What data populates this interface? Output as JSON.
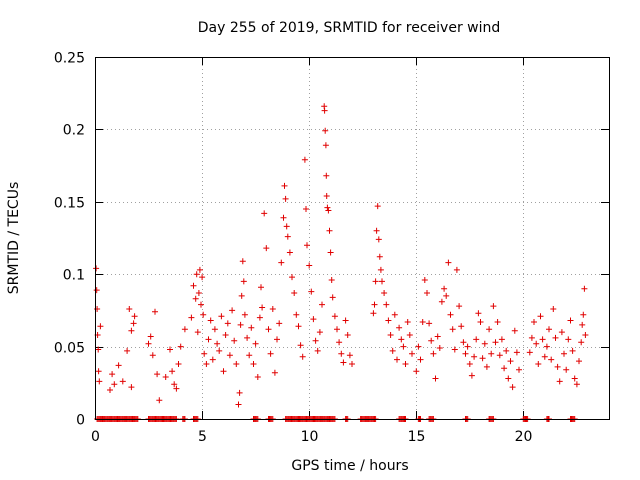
{
  "chart_data": {
    "type": "scatter",
    "title": "Day 255 of 2019, SRMTID for receiver wind",
    "xlabel": "GPS time / hours",
    "ylabel": "SRMTID / TECUs",
    "xlim": [
      0,
      24
    ],
    "ylim": [
      0,
      0.25
    ],
    "xticks": [
      0,
      5,
      10,
      15,
      20
    ],
    "yticks": [
      0,
      0.05,
      0.1,
      0.15,
      0.2,
      0.25
    ],
    "xtick_labels": [
      "0",
      "5",
      "10",
      "15",
      "20"
    ],
    "ytick_labels": [
      "0",
      "0.05",
      "0.1",
      "0.15",
      "0.2",
      "0.25"
    ],
    "grid": true,
    "marker": "+",
    "color": "#e00000",
    "series": [
      {
        "name": "SRMTID",
        "points": [
          [
            0.05,
            0.104
          ],
          [
            0.08,
            0.089
          ],
          [
            0.1,
            0.076
          ],
          [
            0.12,
            0.058
          ],
          [
            0.15,
            0.048
          ],
          [
            0.17,
            0.033
          ],
          [
            0.2,
            0.026
          ],
          [
            0.25,
            0.064
          ],
          [
            0.7,
            0.02
          ],
          [
            0.8,
            0.031
          ],
          [
            0.9,
            0.024
          ],
          [
            1.1,
            0.037
          ],
          [
            1.3,
            0.026
          ],
          [
            1.5,
            0.047
          ],
          [
            1.6,
            0.076
          ],
          [
            1.7,
            0.061
          ],
          [
            1.8,
            0.066
          ],
          [
            1.85,
            0.071
          ],
          [
            1.7,
            0.022
          ],
          [
            2.5,
            0.052
          ],
          [
            2.6,
            0.057
          ],
          [
            2.7,
            0.044
          ],
          [
            2.8,
            0.074
          ],
          [
            2.9,
            0.031
          ],
          [
            3.0,
            0.013
          ],
          [
            3.3,
            0.029
          ],
          [
            3.5,
            0.048
          ],
          [
            3.6,
            0.033
          ],
          [
            3.7,
            0.024
          ],
          [
            3.8,
            0.021
          ],
          [
            3.9,
            0.038
          ],
          [
            4.0,
            0.05
          ],
          [
            4.2,
            0.062
          ],
          [
            4.5,
            0.07
          ],
          [
            4.6,
            0.092
          ],
          [
            4.7,
            0.083
          ],
          [
            4.75,
            0.1
          ],
          [
            4.8,
            0.06
          ],
          [
            4.85,
            0.087
          ],
          [
            4.9,
            0.103
          ],
          [
            4.95,
            0.079
          ],
          [
            5.0,
            0.098
          ],
          [
            5.05,
            0.072
          ],
          [
            5.1,
            0.045
          ],
          [
            5.2,
            0.038
          ],
          [
            5.3,
            0.055
          ],
          [
            5.4,
            0.068
          ],
          [
            5.5,
            0.041
          ],
          [
            5.6,
            0.062
          ],
          [
            5.7,
            0.052
          ],
          [
            5.8,
            0.047
          ],
          [
            5.9,
            0.071
          ],
          [
            6.0,
            0.033
          ],
          [
            6.1,
            0.058
          ],
          [
            6.2,
            0.066
          ],
          [
            6.3,
            0.044
          ],
          [
            6.4,
            0.075
          ],
          [
            6.5,
            0.054
          ],
          [
            6.6,
            0.038
          ],
          [
            6.7,
            0.01
          ],
          [
            6.75,
            0.018
          ],
          [
            6.8,
            0.065
          ],
          [
            6.85,
            0.085
          ],
          [
            6.9,
            0.109
          ],
          [
            6.95,
            0.095
          ],
          [
            7.0,
            0.072
          ],
          [
            7.1,
            0.056
          ],
          [
            7.2,
            0.044
          ],
          [
            7.3,
            0.063
          ],
          [
            7.4,
            0.038
          ],
          [
            7.5,
            0.052
          ],
          [
            7.6,
            0.029
          ],
          [
            7.7,
            0.07
          ],
          [
            7.75,
            0.091
          ],
          [
            7.8,
            0.077
          ],
          [
            7.9,
            0.142
          ],
          [
            8.0,
            0.118
          ],
          [
            8.1,
            0.062
          ],
          [
            8.2,
            0.045
          ],
          [
            8.3,
            0.076
          ],
          [
            8.4,
            0.032
          ],
          [
            8.5,
            0.055
          ],
          [
            8.6,
            0.066
          ],
          [
            8.7,
            0.108
          ],
          [
            8.8,
            0.139
          ],
          [
            8.85,
            0.161
          ],
          [
            8.9,
            0.152
          ],
          [
            8.95,
            0.133
          ],
          [
            9.0,
            0.126
          ],
          [
            9.1,
            0.115
          ],
          [
            9.2,
            0.098
          ],
          [
            9.3,
            0.087
          ],
          [
            9.4,
            0.072
          ],
          [
            9.5,
            0.064
          ],
          [
            9.6,
            0.051
          ],
          [
            9.7,
            0.043
          ],
          [
            9.8,
            0.179
          ],
          [
            9.85,
            0.145
          ],
          [
            9.9,
            0.12
          ],
          [
            10.0,
            0.106
          ],
          [
            10.1,
            0.088
          ],
          [
            10.2,
            0.069
          ],
          [
            10.3,
            0.054
          ],
          [
            10.4,
            0.047
          ],
          [
            10.5,
            0.06
          ],
          [
            10.6,
            0.079
          ],
          [
            10.7,
            0.216
          ],
          [
            10.72,
            0.213
          ],
          [
            10.75,
            0.199
          ],
          [
            10.78,
            0.189
          ],
          [
            10.8,
            0.168
          ],
          [
            10.82,
            0.154
          ],
          [
            10.85,
            0.146
          ],
          [
            10.9,
            0.144
          ],
          [
            10.95,
            0.13
          ],
          [
            11.0,
            0.115
          ],
          [
            11.05,
            0.096
          ],
          [
            11.1,
            0.084
          ],
          [
            11.2,
            0.071
          ],
          [
            11.3,
            0.062
          ],
          [
            11.4,
            0.053
          ],
          [
            11.5,
            0.045
          ],
          [
            11.6,
            0.039
          ],
          [
            11.7,
            0.068
          ],
          [
            11.8,
            0.058
          ],
          [
            11.9,
            0.044
          ],
          [
            12.0,
            0.038
          ],
          [
            13.0,
            0.073
          ],
          [
            13.05,
            0.079
          ],
          [
            13.1,
            0.095
          ],
          [
            13.15,
            0.13
          ],
          [
            13.2,
            0.147
          ],
          [
            13.25,
            0.124
          ],
          [
            13.3,
            0.112
          ],
          [
            13.35,
            0.103
          ],
          [
            13.4,
            0.095
          ],
          [
            13.5,
            0.087
          ],
          [
            13.6,
            0.079
          ],
          [
            13.7,
            0.068
          ],
          [
            13.8,
            0.058
          ],
          [
            13.9,
            0.047
          ],
          [
            14.0,
            0.072
          ],
          [
            14.1,
            0.041
          ],
          [
            14.2,
            0.063
          ],
          [
            14.3,
            0.055
          ],
          [
            14.4,
            0.05
          ],
          [
            14.5,
            0.038
          ],
          [
            14.6,
            0.067
          ],
          [
            14.7,
            0.058
          ],
          [
            14.8,
            0.045
          ],
          [
            15.0,
            0.033
          ],
          [
            15.1,
            0.05
          ],
          [
            15.2,
            0.041
          ],
          [
            15.3,
            0.067
          ],
          [
            15.4,
            0.096
          ],
          [
            15.5,
            0.087
          ],
          [
            15.6,
            0.066
          ],
          [
            15.7,
            0.054
          ],
          [
            15.8,
            0.045
          ],
          [
            15.9,
            0.028
          ],
          [
            16.0,
            0.057
          ],
          [
            16.1,
            0.049
          ],
          [
            16.2,
            0.081
          ],
          [
            16.3,
            0.09
          ],
          [
            16.4,
            0.085
          ],
          [
            16.5,
            0.108
          ],
          [
            16.6,
            0.072
          ],
          [
            16.7,
            0.062
          ],
          [
            16.8,
            0.048
          ],
          [
            16.9,
            0.103
          ],
          [
            17.0,
            0.078
          ],
          [
            17.1,
            0.064
          ],
          [
            17.2,
            0.053
          ],
          [
            17.3,
            0.045
          ],
          [
            17.4,
            0.05
          ],
          [
            17.5,
            0.038
          ],
          [
            17.6,
            0.03
          ],
          [
            17.7,
            0.043
          ],
          [
            17.8,
            0.055
          ],
          [
            17.9,
            0.073
          ],
          [
            18.0,
            0.067
          ],
          [
            18.1,
            0.042
          ],
          [
            18.2,
            0.052
          ],
          [
            18.3,
            0.036
          ],
          [
            18.4,
            0.062
          ],
          [
            18.5,
            0.045
          ],
          [
            18.6,
            0.078
          ],
          [
            18.7,
            0.053
          ],
          [
            18.8,
            0.067
          ],
          [
            18.9,
            0.044
          ],
          [
            19.0,
            0.055
          ],
          [
            19.1,
            0.035
          ],
          [
            19.2,
            0.047
          ],
          [
            19.3,
            0.028
          ],
          [
            19.4,
            0.04
          ],
          [
            19.5,
            0.022
          ],
          [
            19.6,
            0.061
          ],
          [
            19.7,
            0.046
          ],
          [
            19.8,
            0.034
          ],
          [
            20.3,
            0.046
          ],
          [
            20.4,
            0.056
          ],
          [
            20.5,
            0.067
          ],
          [
            20.6,
            0.052
          ],
          [
            20.7,
            0.038
          ],
          [
            20.8,
            0.071
          ],
          [
            20.9,
            0.055
          ],
          [
            21.0,
            0.043
          ],
          [
            21.1,
            0.05
          ],
          [
            21.2,
            0.062
          ],
          [
            21.3,
            0.041
          ],
          [
            21.4,
            0.076
          ],
          [
            21.5,
            0.056
          ],
          [
            21.6,
            0.036
          ],
          [
            21.7,
            0.026
          ],
          [
            21.8,
            0.06
          ],
          [
            21.9,
            0.045
          ],
          [
            22.0,
            0.034
          ],
          [
            22.1,
            0.055
          ],
          [
            22.2,
            0.068
          ],
          [
            22.3,
            0.047
          ],
          [
            22.4,
            0.028
          ],
          [
            22.5,
            0.024
          ],
          [
            22.6,
            0.04
          ],
          [
            22.7,
            0.053
          ],
          [
            22.75,
            0.065
          ],
          [
            22.8,
            0.072
          ],
          [
            22.85,
            0.09
          ],
          [
            22.9,
            0.058
          ]
        ]
      }
    ],
    "zero_segments": [
      [
        0.1,
        2.0
      ],
      [
        2.5,
        3.8
      ],
      [
        4.1,
        4.2
      ],
      [
        4.6,
        4.8
      ],
      [
        7.4,
        7.6
      ],
      [
        8.1,
        8.3
      ],
      [
        8.9,
        11.2
      ],
      [
        11.7,
        11.8
      ],
      [
        12.4,
        13.1
      ],
      [
        14.2,
        14.5
      ],
      [
        15.1,
        15.2
      ],
      [
        15.6,
        15.8
      ],
      [
        17.3,
        17.4
      ],
      [
        18.4,
        18.6
      ],
      [
        20.0,
        20.2
      ],
      [
        21.1,
        21.2
      ],
      [
        22.2,
        22.4
      ]
    ]
  }
}
